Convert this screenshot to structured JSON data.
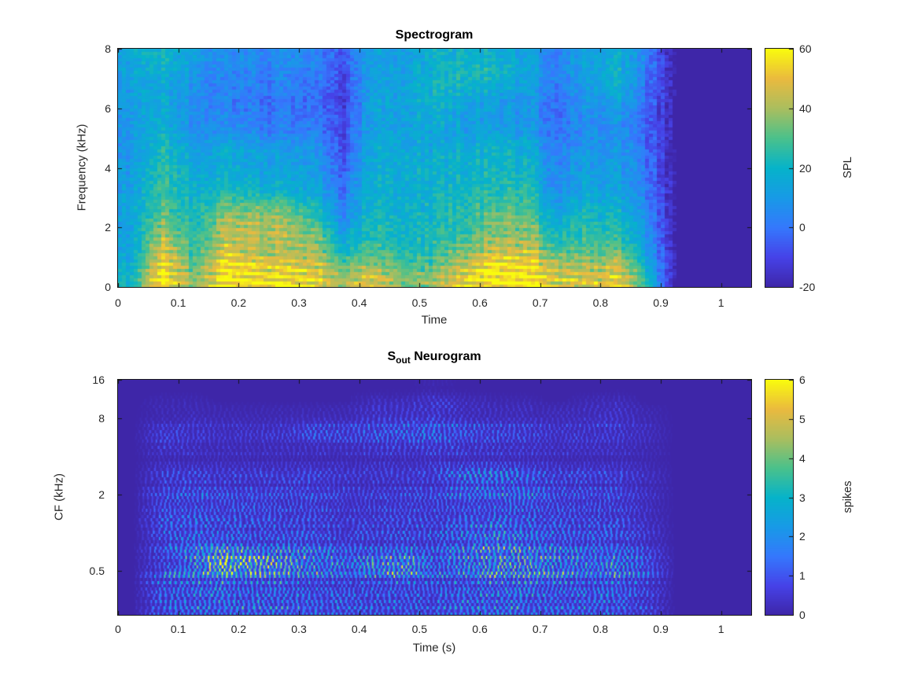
{
  "colors": {
    "background": "#ffffff",
    "axis": "#1a1a1a",
    "tick_text": "#262626",
    "title_text": "#000000",
    "parula_anchors": [
      [
        0,
        62,
        38,
        168
      ],
      [
        0.125,
        70,
        66,
        232
      ],
      [
        0.25,
        53,
        120,
        253
      ],
      [
        0.375,
        24,
        154,
        231
      ],
      [
        0.5,
        6,
        179,
        202
      ],
      [
        0.625,
        74,
        193,
        140
      ],
      [
        0.75,
        170,
        190,
        95
      ],
      [
        0.875,
        234,
        186,
        63
      ],
      [
        1,
        249,
        251,
        14
      ]
    ]
  },
  "top_chart": {
    "title": "Spectrogram",
    "xlabel": "Time",
    "ylabel": "Frequency (kHz)",
    "xtick_labels": [
      "0",
      "0.1",
      "0.2",
      "0.3",
      "0.4",
      "0.5",
      "0.6",
      "0.7",
      "0.8",
      "0.9",
      "1"
    ],
    "ytick_labels": [
      "0",
      "2",
      "4",
      "6",
      "8"
    ],
    "colorbar": {
      "label": "SPL",
      "tick_labels": [
        "-20",
        "0",
        "20",
        "40",
        "60"
      ]
    }
  },
  "bottom_chart": {
    "title_prefix": "S",
    "title_sub": "out",
    "title_rest": " Neurogram",
    "xlabel": "Time (s)",
    "ylabel": "CF (kHz)",
    "xtick_labels": [
      "0",
      "0.1",
      "0.2",
      "0.3",
      "0.4",
      "0.5",
      "0.6",
      "0.7",
      "0.8",
      "0.9",
      "1"
    ],
    "ytick_labels": [
      "16",
      "8",
      "2",
      "0.5"
    ],
    "colorbar": {
      "label": "spikes",
      "tick_labels": [
        "0",
        "1",
        "2",
        "3",
        "4",
        "5",
        "6"
      ]
    }
  },
  "chart_data": [
    {
      "type": "heatmap",
      "name": "spectrogram",
      "title": "Spectrogram",
      "xlabel": "Time",
      "ylabel": "Frequency (kHz)",
      "colormap": "parula",
      "x_range": [
        0,
        1.05
      ],
      "y_range_khz": [
        0,
        8
      ],
      "clim": [
        -20,
        60
      ],
      "colorbar_label": "SPL",
      "xticks": [
        0,
        0.1,
        0.2,
        0.3,
        0.4,
        0.5,
        0.6,
        0.7,
        0.8,
        0.9,
        1
      ],
      "yticks": [
        0,
        2,
        4,
        6,
        8
      ],
      "colorbar_ticks": [
        -20,
        0,
        20,
        40,
        60
      ],
      "time_bin_s": 0.05,
      "freq_bin_khz": 0.5,
      "note": "columns = 21 time bins (0 to 1.05 s); each column lists 16 SPL values from 0 kHz (first) to 8 kHz (last); silence after 0.88 s",
      "values": [
        [
          22,
          18,
          15,
          14,
          14,
          13,
          12,
          12,
          11,
          10,
          10,
          10,
          12,
          12,
          13,
          15
        ],
        [
          58,
          55,
          48,
          40,
          34,
          30,
          28,
          26,
          24,
          22,
          18,
          16,
          16,
          15,
          18,
          20
        ],
        [
          36,
          30,
          26,
          24,
          22,
          20,
          18,
          16,
          14,
          12,
          8,
          6,
          6,
          8,
          10,
          12
        ],
        [
          58,
          54,
          46,
          42,
          38,
          30,
          22,
          18,
          16,
          14,
          6,
          4,
          2,
          2,
          4,
          6
        ],
        [
          56,
          52,
          40,
          42,
          40,
          32,
          20,
          16,
          14,
          12,
          4,
          2,
          0,
          2,
          4,
          6
        ],
        [
          54,
          48,
          38,
          42,
          38,
          28,
          18,
          14,
          12,
          10,
          2,
          0,
          0,
          2,
          4,
          6
        ],
        [
          52,
          46,
          40,
          36,
          28,
          22,
          14,
          12,
          10,
          8,
          2,
          0,
          -2,
          0,
          2,
          4
        ],
        [
          40,
          30,
          20,
          12,
          6,
          2,
          0,
          -4,
          -6,
          -8,
          -10,
          -10,
          -12,
          -10,
          -8,
          -6
        ],
        [
          48,
          40,
          30,
          26,
          24,
          22,
          20,
          20,
          18,
          18,
          16,
          16,
          16,
          14,
          14,
          14
        ],
        [
          34,
          28,
          22,
          20,
          18,
          18,
          16,
          16,
          16,
          14,
          12,
          12,
          12,
          12,
          12,
          12
        ],
        [
          38,
          30,
          26,
          24,
          22,
          22,
          20,
          18,
          18,
          16,
          16,
          18,
          20,
          22,
          20,
          18
        ],
        [
          52,
          44,
          34,
          28,
          26,
          24,
          22,
          20,
          18,
          16,
          12,
          12,
          16,
          20,
          22,
          20
        ],
        [
          58,
          55,
          44,
          36,
          32,
          28,
          24,
          22,
          20,
          18,
          12,
          10,
          12,
          18,
          22,
          18
        ],
        [
          58,
          54,
          46,
          38,
          34,
          30,
          26,
          22,
          20,
          18,
          12,
          10,
          10,
          14,
          16,
          14
        ],
        [
          50,
          42,
          30,
          24,
          18,
          12,
          8,
          6,
          4,
          2,
          0,
          0,
          0,
          2,
          4,
          4
        ],
        [
          46,
          38,
          30,
          26,
          22,
          18,
          14,
          12,
          10,
          8,
          6,
          6,
          8,
          10,
          12,
          12
        ],
        [
          52,
          44,
          32,
          26,
          22,
          18,
          14,
          12,
          12,
          10,
          8,
          10,
          14,
          18,
          20,
          18
        ],
        [
          26,
          18,
          12,
          8,
          6,
          4,
          2,
          0,
          0,
          -2,
          -4,
          -4,
          -2,
          0,
          2,
          2
        ],
        [
          -20,
          -20,
          -20,
          -20,
          -20,
          -20,
          -20,
          -20,
          -20,
          -20,
          -20,
          -20,
          -20,
          -20,
          -20,
          -20
        ],
        [
          -20,
          -20,
          -20,
          -20,
          -20,
          -20,
          -20,
          -20,
          -20,
          -20,
          -20,
          -20,
          -20,
          -20,
          -20,
          -20
        ],
        [
          -20,
          -20,
          -20,
          -20,
          -20,
          -20,
          -20,
          -20,
          -20,
          -20,
          -20,
          -20,
          -20,
          -20,
          -20,
          -20
        ]
      ]
    },
    {
      "type": "heatmap",
      "name": "neurogram",
      "title": "S_out Neurogram",
      "xlabel": "Time (s)",
      "ylabel": "CF (kHz)",
      "colormap": "parula",
      "y_scale": "log2",
      "x_range": [
        0,
        1.05
      ],
      "y_range_khz": [
        0.223,
        16
      ],
      "clim": [
        0,
        6
      ],
      "colorbar_label": "spikes",
      "xticks": [
        0,
        0.1,
        0.2,
        0.3,
        0.4,
        0.5,
        0.6,
        0.7,
        0.8,
        0.9,
        1
      ],
      "yticks": [
        16,
        8,
        2,
        0.5
      ],
      "colorbar_ticks": [
        0,
        1,
        2,
        3,
        4,
        5,
        6
      ],
      "time_bin_s": 0.05,
      "note": "columns = 21 time bins; each column lists 16 mean spike counts for log-spaced CF rows from 0.25 kHz (first) to 14 kHz (last); hot spot ~5 spikes at t=0.17-0.22 s, CF=0.5 kHz; silence after 0.9 s",
      "values": [
        [
          0,
          0,
          0,
          0,
          0,
          0,
          0,
          0,
          0,
          0,
          0,
          0,
          0,
          0,
          0,
          0
        ],
        [
          1.0,
          0.9,
          1.2,
          0.9,
          1.0,
          0.8,
          1.0,
          0.7,
          0.8,
          0.5,
          0.3,
          0.5,
          0.6,
          0.3,
          0.1,
          0
        ],
        [
          1.3,
          1.0,
          1.5,
          2.2,
          1.8,
          1.0,
          1.2,
          0.8,
          1.0,
          0.6,
          0.3,
          0.4,
          0.5,
          0.4,
          0.1,
          0
        ],
        [
          1.4,
          1.2,
          2.0,
          5.2,
          2.2,
          0.9,
          1.0,
          0.8,
          0.8,
          0.5,
          0.3,
          0.3,
          0.4,
          0.3,
          0,
          0
        ],
        [
          1.4,
          1.0,
          1.6,
          4.2,
          1.4,
          0.8,
          1.0,
          0.8,
          0.8,
          0.5,
          0.3,
          0.3,
          0.4,
          0.3,
          0,
          0
        ],
        [
          1.4,
          1.0,
          1.4,
          3.2,
          1.6,
          0.8,
          0.9,
          0.7,
          0.8,
          0.5,
          0.3,
          0.3,
          0.5,
          0.3,
          0,
          0
        ],
        [
          1.3,
          0.9,
          1.2,
          2.6,
          1.4,
          0.8,
          0.8,
          0.7,
          0.9,
          0.6,
          0.3,
          0.4,
          1.0,
          0.4,
          0,
          0
        ],
        [
          1.1,
          0.8,
          1.0,
          2.0,
          1.0,
          0.6,
          0.6,
          0.5,
          0.6,
          0.4,
          0.3,
          0.4,
          0.8,
          0.4,
          0,
          0
        ],
        [
          1.0,
          0.8,
          1.2,
          2.6,
          1.0,
          0.7,
          0.7,
          0.6,
          0.6,
          0.4,
          0.4,
          0.6,
          1.0,
          0.8,
          0.2,
          0
        ],
        [
          1.1,
          0.9,
          1.6,
          3.4,
          1.2,
          0.8,
          0.8,
          0.7,
          0.7,
          0.5,
          0.4,
          0.6,
          1.2,
          0.8,
          0.2,
          0
        ],
        [
          1.1,
          0.8,
          1.0,
          1.6,
          1.0,
          0.8,
          0.8,
          0.7,
          0.8,
          0.6,
          0.5,
          0.8,
          1.3,
          1.0,
          0.4,
          0.1
        ],
        [
          1.3,
          1.0,
          1.4,
          2.2,
          1.6,
          1.3,
          1.0,
          0.9,
          1.3,
          1.2,
          0.5,
          0.6,
          1.0,
          0.6,
          0.2,
          0
        ],
        [
          1.4,
          1.2,
          1.8,
          2.9,
          2.2,
          1.6,
          1.2,
          1.0,
          1.5,
          1.2,
          0.5,
          0.5,
          0.8,
          0.5,
          0.1,
          0
        ],
        [
          1.4,
          1.2,
          1.8,
          2.9,
          2.0,
          1.4,
          1.1,
          1.0,
          1.4,
          1.0,
          0.5,
          0.5,
          0.7,
          0.5,
          0.1,
          0
        ],
        [
          1.2,
          1.0,
          1.5,
          2.3,
          1.5,
          1.1,
          0.9,
          0.8,
          0.9,
          0.6,
          0.3,
          0.4,
          0.5,
          0.4,
          0,
          0
        ],
        [
          1.2,
          1.0,
          1.3,
          2.1,
          1.2,
          1.0,
          0.8,
          0.7,
          0.8,
          0.6,
          0.3,
          0.4,
          0.5,
          0.6,
          0.1,
          0
        ],
        [
          1.2,
          1.0,
          1.6,
          2.5,
          1.1,
          0.9,
          0.8,
          0.7,
          0.8,
          0.6,
          0.3,
          0.4,
          0.5,
          0.8,
          0.2,
          0
        ],
        [
          0.7,
          0.6,
          0.9,
          1.3,
          0.7,
          0.5,
          0.4,
          0.3,
          0.4,
          0.3,
          0.2,
          0.2,
          0.3,
          0.3,
          0,
          0
        ],
        [
          0,
          0,
          0,
          0,
          0,
          0,
          0,
          0,
          0,
          0,
          0,
          0,
          0,
          0,
          0,
          0
        ],
        [
          0,
          0,
          0,
          0,
          0,
          0,
          0,
          0,
          0,
          0,
          0,
          0,
          0,
          0,
          0,
          0
        ],
        [
          0,
          0,
          0,
          0,
          0,
          0,
          0,
          0,
          0,
          0,
          0,
          0,
          0,
          0,
          0,
          0
        ]
      ]
    }
  ]
}
